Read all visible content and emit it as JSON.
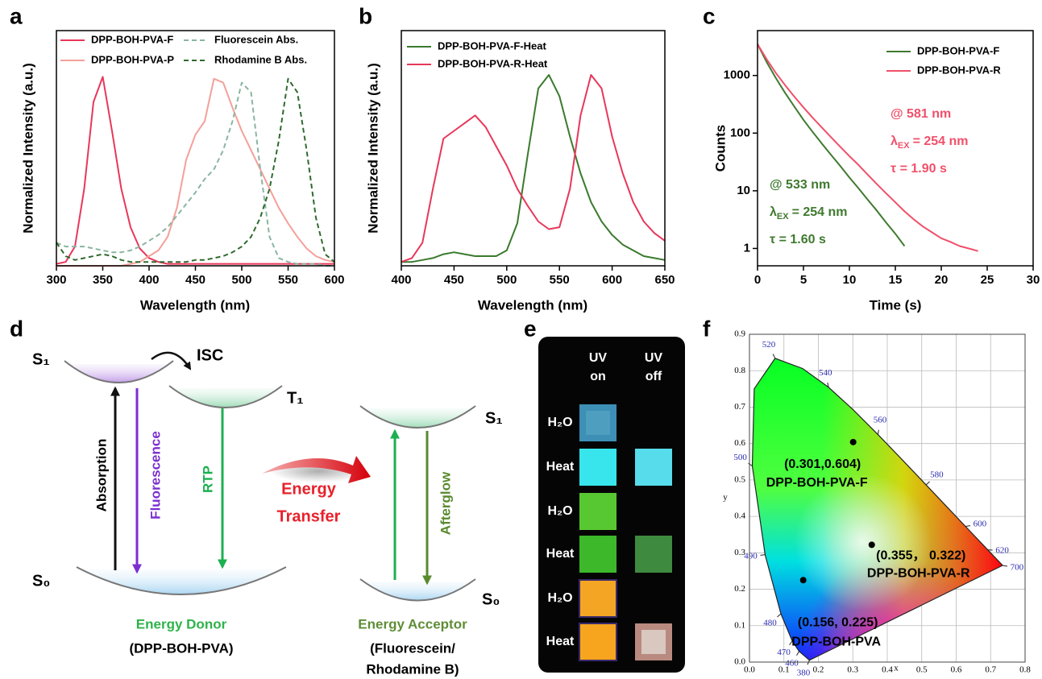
{
  "chart_data": [
    {
      "type": "line",
      "panel": "a",
      "xlabel": "Wavelength (nm)",
      "ylabel": "Normalized Intensity (a.u.)",
      "xlim": [
        300,
        600
      ],
      "xticks": [
        300,
        350,
        400,
        450,
        500,
        550,
        600
      ],
      "ylim": [
        0,
        1.22
      ],
      "x": [
        300,
        310,
        320,
        330,
        340,
        350,
        360,
        370,
        380,
        390,
        400,
        410,
        420,
        430,
        440,
        450,
        460,
        470,
        480,
        490,
        500,
        510,
        520,
        530,
        540,
        550,
        560,
        570,
        580,
        590,
        600
      ],
      "series": [
        {
          "name": "DPP-BOH-PVA-F",
          "color": "#e8375a",
          "dashed": false,
          "values": [
            0.01,
            0.02,
            0.1,
            0.4,
            0.85,
            0.98,
            0.7,
            0.4,
            0.2,
            0.09,
            0.04,
            0.02,
            0.01,
            0.01,
            0.01,
            0.01,
            0.01,
            0.01,
            0.01,
            0.01,
            0.01,
            0.01,
            0.01,
            0.01,
            0.01,
            0.01,
            0.01,
            0.01,
            0.01,
            0.01,
            0.01
          ]
        },
        {
          "name": "DPP-BOH-PVA-P",
          "color": "#f4a09a",
          "dashed": false,
          "values": [
            0,
            0,
            0,
            0,
            0,
            0,
            0,
            0,
            0.01,
            0.02,
            0.05,
            0.08,
            0.15,
            0.3,
            0.55,
            0.68,
            0.75,
            0.97,
            0.95,
            0.82,
            0.7,
            0.6,
            0.5,
            0.4,
            0.3,
            0.22,
            0.15,
            0.09,
            0.05,
            0.03,
            0.02
          ]
        },
        {
          "name": "Fluorescein Abs.",
          "color": "#8ab5a0",
          "dashed": true,
          "values": [
            0.12,
            0.1,
            0.1,
            0.1,
            0.09,
            0.08,
            0.07,
            0.07,
            0.08,
            0.1,
            0.13,
            0.16,
            0.2,
            0.26,
            0.32,
            0.38,
            0.45,
            0.5,
            0.6,
            0.75,
            0.95,
            0.9,
            0.5,
            0.15,
            0.04,
            0.02,
            0.01,
            0.01,
            0.01,
            0,
            0
          ]
        },
        {
          "name": "Rhodamine B Abs.",
          "color": "#2e6b2e",
          "dashed": true,
          "values": [
            0.12,
            0.05,
            0.03,
            0.04,
            0.05,
            0.06,
            0.05,
            0.03,
            0.02,
            0.02,
            0.02,
            0.02,
            0.02,
            0.02,
            0.02,
            0.03,
            0.03,
            0.04,
            0.05,
            0.07,
            0.1,
            0.15,
            0.25,
            0.4,
            0.65,
            0.97,
            0.9,
            0.6,
            0.25,
            0.06,
            0.02
          ]
        }
      ]
    },
    {
      "type": "line",
      "panel": "b",
      "xlabel": "Wavelength (nm)",
      "ylabel": "Normalized Intensity (a.u.)",
      "xlim": [
        400,
        650
      ],
      "xticks": [
        400,
        450,
        500,
        550,
        600,
        650
      ],
      "ylim": [
        0,
        1.22
      ],
      "x": [
        400,
        410,
        420,
        430,
        440,
        450,
        460,
        470,
        480,
        490,
        500,
        510,
        520,
        530,
        540,
        550,
        560,
        570,
        580,
        590,
        600,
        610,
        620,
        630,
        640,
        650
      ],
      "series": [
        {
          "name": "DPP-BOH-PVA-F-Heat",
          "color": "#3a7a2e",
          "dashed": false,
          "values": [
            0.02,
            0.02,
            0.03,
            0.04,
            0.06,
            0.07,
            0.06,
            0.05,
            0.05,
            0.05,
            0.08,
            0.22,
            0.58,
            0.92,
            0.99,
            0.88,
            0.67,
            0.48,
            0.33,
            0.23,
            0.16,
            0.11,
            0.08,
            0.05,
            0.04,
            0.03
          ]
        },
        {
          "name": "DPP-BOH-PVA-R-Heat",
          "color": "#e8375a",
          "dashed": false,
          "values": [
            0.02,
            0.04,
            0.12,
            0.4,
            0.66,
            0.7,
            0.74,
            0.78,
            0.72,
            0.62,
            0.52,
            0.4,
            0.31,
            0.23,
            0.19,
            0.2,
            0.4,
            0.78,
            0.99,
            0.92,
            0.67,
            0.48,
            0.33,
            0.23,
            0.17,
            0.13
          ]
        }
      ]
    },
    {
      "type": "line",
      "panel": "c",
      "xlabel": "Time (s)",
      "ylabel": "Counts",
      "log_y": true,
      "xlim": [
        0,
        30
      ],
      "xticks": [
        0,
        5,
        10,
        15,
        20,
        25,
        30
      ],
      "ylim": [
        0.5,
        6000
      ],
      "yticks": [
        1,
        10,
        100,
        1000
      ],
      "series": [
        {
          "name": "DPP-BOH-PVA-F",
          "color": "#3f7a2f",
          "dashed": false,
          "x": [
            0,
            1,
            2,
            3,
            4,
            5,
            6,
            7,
            8,
            9,
            10,
            11,
            12,
            13,
            14,
            15,
            16
          ],
          "values": [
            3500,
            1700,
            900,
            500,
            290,
            170,
            105,
            66,
            42,
            27,
            17,
            11,
            7,
            4.5,
            2.8,
            1.8,
            1.1
          ],
          "annotation": {
            "line1": "@ 533 nm",
            "symbol": "λ",
            "sub": "EX",
            "rest": "= 254 nm",
            "tau": "τ = 1.60 s"
          }
        },
        {
          "name": "DPP-BOH-PVA-R",
          "color": "#f0506a",
          "dashed": false,
          "x": [
            0,
            1,
            2,
            3,
            4,
            5,
            6,
            7,
            8,
            9,
            10,
            11,
            12,
            13,
            14,
            15,
            16,
            17,
            18,
            19,
            20,
            21,
            22,
            23,
            24
          ],
          "values": [
            3500,
            1900,
            1100,
            680,
            430,
            280,
            185,
            125,
            85,
            58,
            40,
            28,
            19,
            13,
            9,
            6.3,
            4.4,
            3.2,
            2.4,
            1.9,
            1.5,
            1.3,
            1.1,
            1.0,
            0.9
          ],
          "annotation": {
            "line1": "@ 581 nm",
            "symbol": "λ",
            "sub": "EX",
            "rest": "= 254 nm",
            "tau": "τ = 1.90 s"
          }
        }
      ]
    },
    {
      "type": "cie",
      "panel": "f",
      "xlabel": "x",
      "ylabel": "y",
      "xlim": [
        0,
        0.8
      ],
      "xticks": [
        {
          "value": 0,
          "label": "0.0"
        },
        0.1,
        0.2,
        0.3,
        0.4,
        0.5,
        0.6,
        0.7,
        0.8
      ],
      "ylim": [
        0,
        0.9
      ],
      "yticks": [
        {
          "value": 0,
          "label": "0.0"
        },
        0.1,
        0.2,
        0.3,
        0.4,
        0.5,
        0.6,
        0.7,
        0.8,
        0.9
      ],
      "locus_labels": [
        "380",
        "460",
        "470",
        "480",
        "490",
        "500",
        null,
        "520",
        null,
        "540",
        null,
        "560",
        null,
        "580",
        null,
        "600",
        "620",
        "700"
      ],
      "locus_x": [
        0.1741,
        0.144,
        0.1241,
        0.0913,
        0.0454,
        0.0082,
        0.0139,
        0.0743,
        0.1547,
        0.2296,
        0.3016,
        0.3731,
        0.4441,
        0.5125,
        0.5752,
        0.627,
        0.6915,
        0.7347
      ],
      "locus_y": [
        0.005,
        0.0297,
        0.0578,
        0.1327,
        0.295,
        0.5384,
        0.7502,
        0.8338,
        0.8059,
        0.7543,
        0.6923,
        0.6245,
        0.5547,
        0.4866,
        0.4242,
        0.3725,
        0.3083,
        0.2653
      ],
      "points_x": [
        0.301,
        0.355,
        0.156
      ],
      "points_y": [
        0.604,
        0.322,
        0.225
      ],
      "point_labels": [
        "(0.301,0.604)",
        "(0.355，  0.322)",
        "(0.156, 0.225)"
      ],
      "point_names": [
        "DPP-BOH-PVA-F",
        "DPP-BOH-PVA-R",
        "DPP-BOH-PVA"
      ]
    }
  ],
  "diagram": {
    "panel": "d",
    "donor_s1": "S₁",
    "isc": "ISC",
    "t1": "T₁",
    "absorption": "Absorption",
    "fluorescence": "Fluorescence",
    "rtp": "RTP",
    "transfer_1": "Energy",
    "transfer_2": "Transfer",
    "acceptor_s1": "S₁",
    "afterglow": "Afterglow",
    "donor_s0": "S₀",
    "acceptor_s0": "S₀",
    "donor_label": "Energy Donor",
    "donor_name": "(DPP-BOH-PVA)",
    "acceptor_label": "Energy Acceptor",
    "acceptor_name_1": "(Fluorescein/",
    "acceptor_name_2": "Rhodamine B)"
  },
  "photo": {
    "panel": "e",
    "columns": [
      [
        "UV",
        "on"
      ],
      [
        "UV",
        "off"
      ]
    ],
    "rows": [
      "H₂O",
      "Heat",
      "H₂O",
      "Heat",
      "H₂O",
      "Heat"
    ]
  }
}
